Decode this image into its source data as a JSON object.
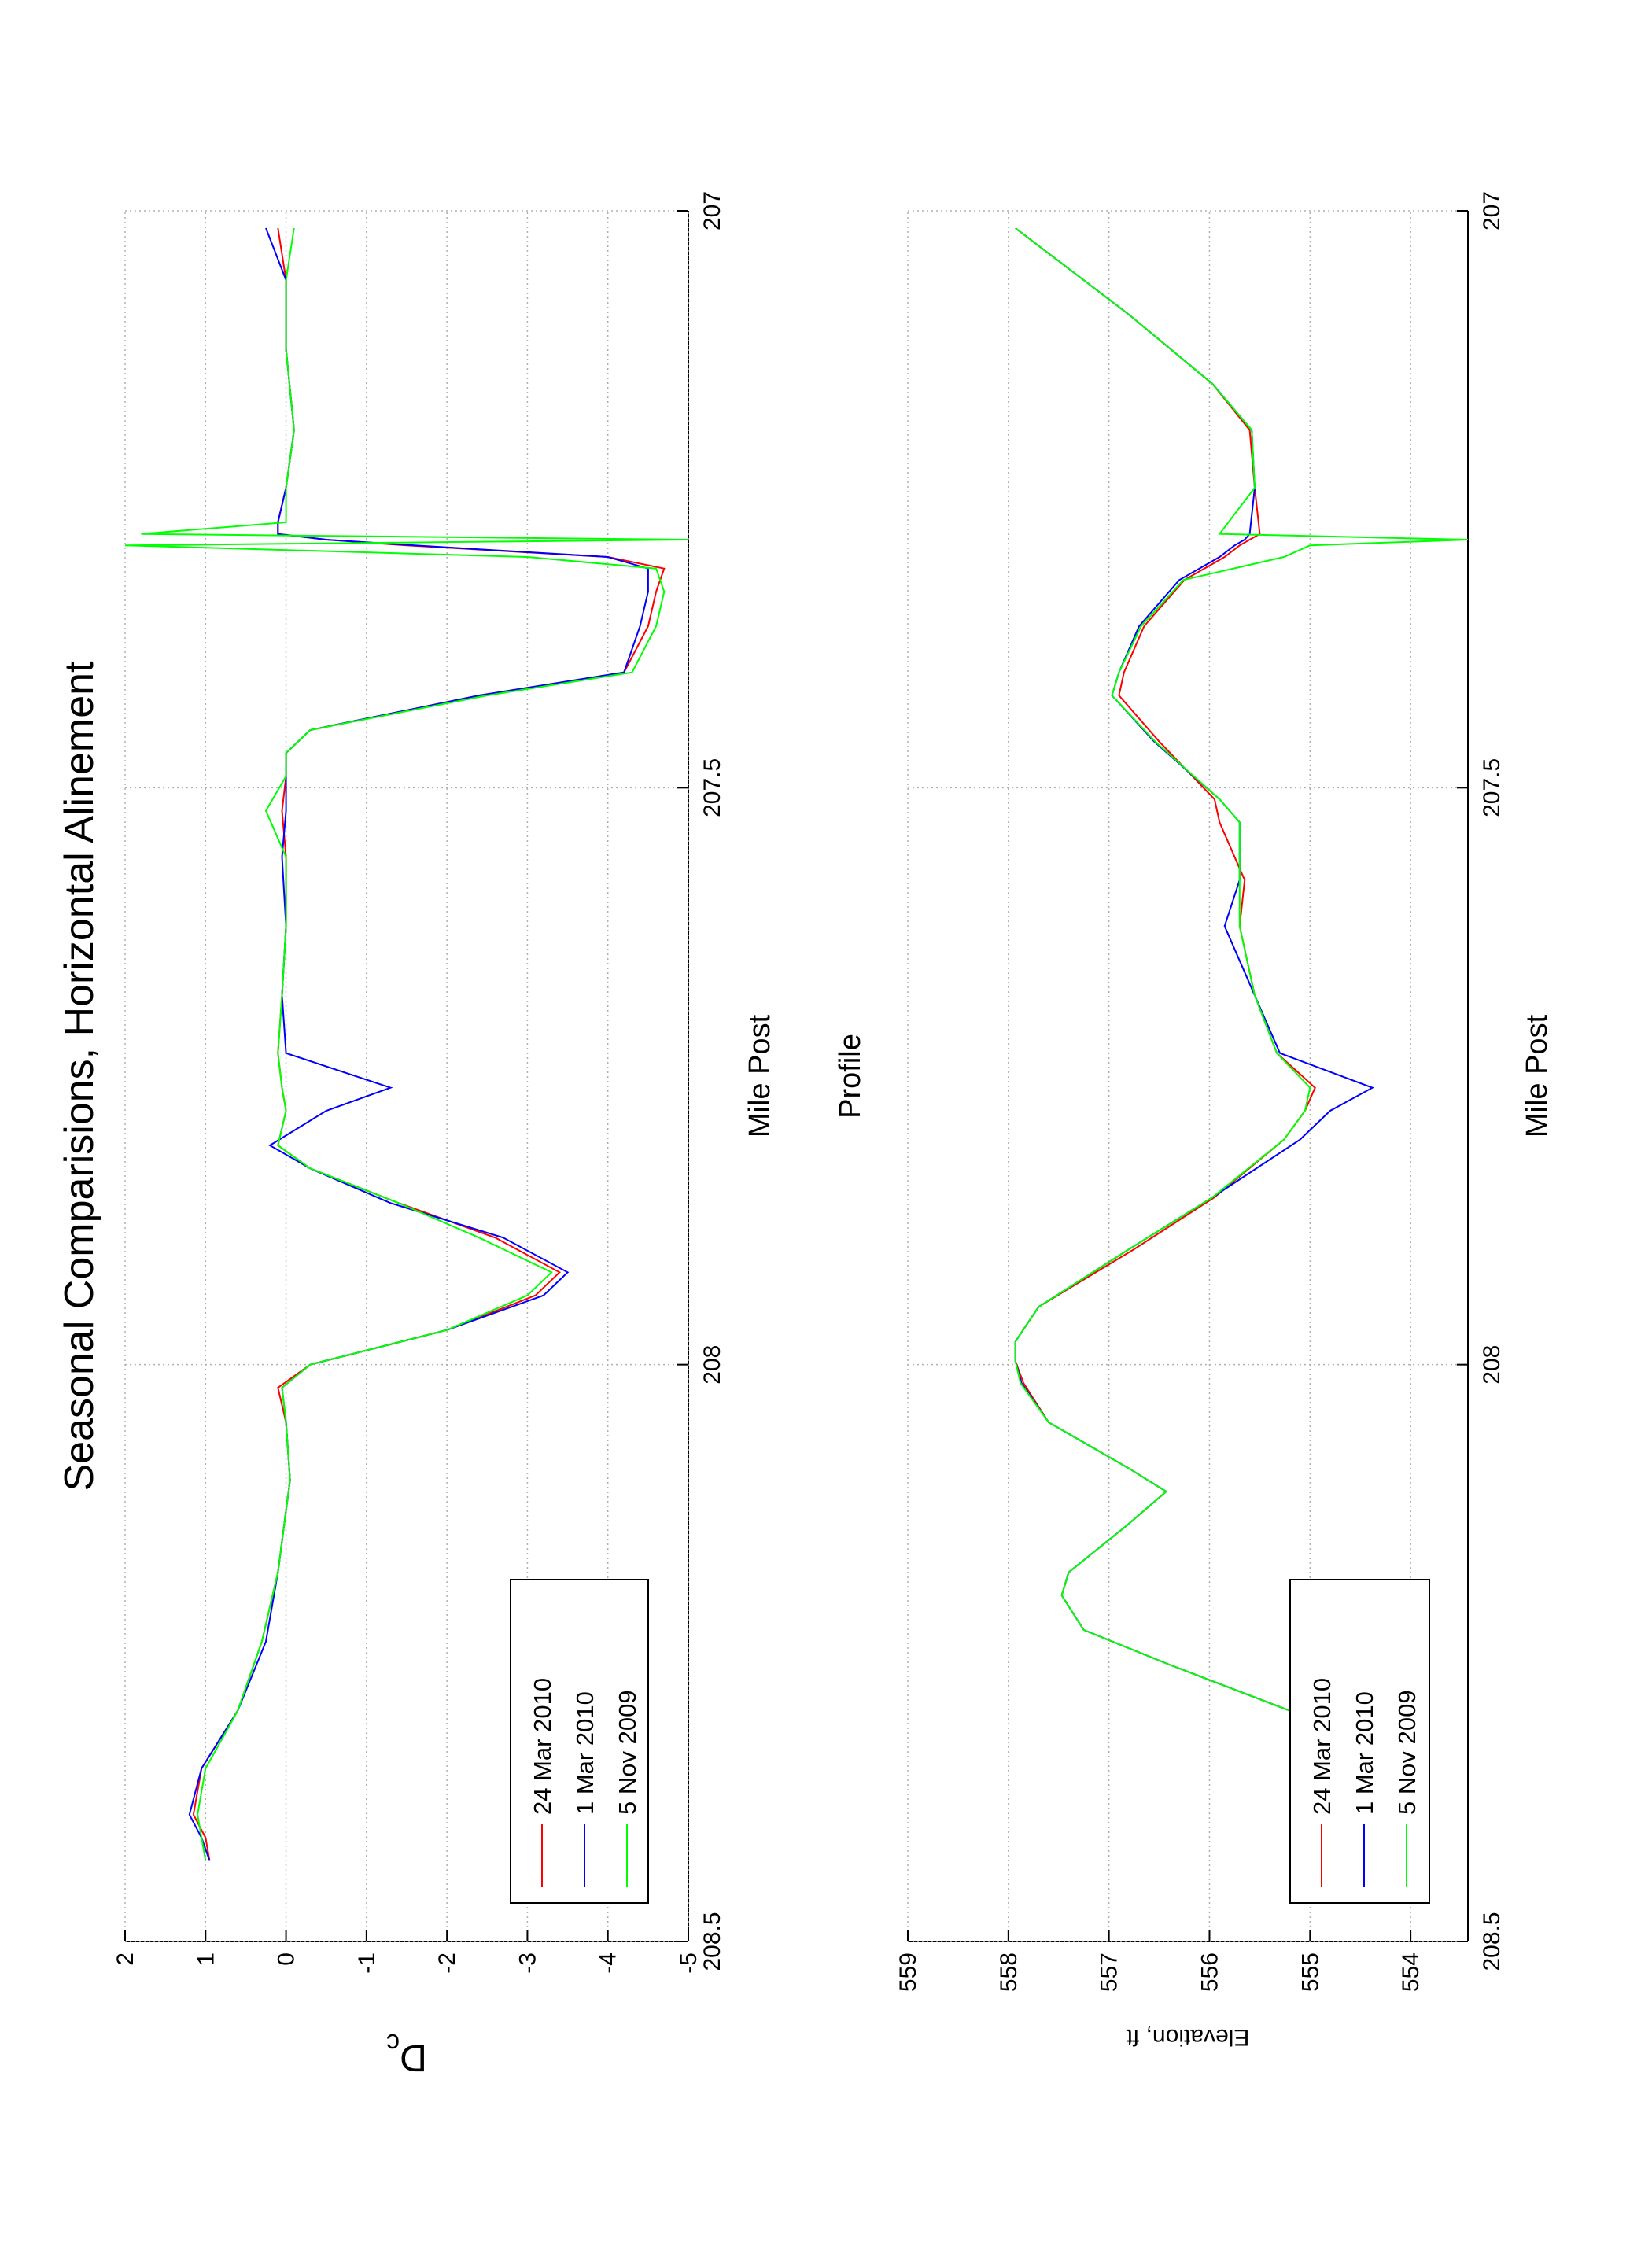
{
  "chart_data": [
    {
      "type": "line",
      "title": "Seasonal Comparisions,  Horizontal Alinement",
      "xlabel": "Mile Post",
      "ylabel": "Dc",
      "xlim": [
        208.5,
        207
      ],
      "xticks": [
        208.5,
        208,
        207.5,
        207
      ],
      "ylim": [
        -5,
        2
      ],
      "yticks": [
        -5,
        -4,
        -3,
        -2,
        -1,
        0,
        1,
        2
      ],
      "grid": true,
      "legend": "lower left",
      "x": [
        208.43,
        208.41,
        208.39,
        208.35,
        208.3,
        208.24,
        208.18,
        208.1,
        208.05,
        208.02,
        208.0,
        207.97,
        207.94,
        207.92,
        207.89,
        207.86,
        207.83,
        207.81,
        207.78,
        207.76,
        207.73,
        207.68,
        207.62,
        207.56,
        207.52,
        207.49,
        207.47,
        207.45,
        207.42,
        207.4,
        207.36,
        207.33,
        207.31,
        207.3,
        207.29,
        207.285,
        207.28,
        207.27,
        207.24,
        207.19,
        207.12,
        207.06,
        207.015
      ],
      "series": [
        {
          "name": "24 Mar 2010",
          "color": "#ff0000",
          "values": [
            0.95,
            1.0,
            1.15,
            1.05,
            0.6,
            0.3,
            0.1,
            -0.05,
            0.0,
            0.1,
            -0.3,
            -2.0,
            -3.1,
            -3.4,
            -2.6,
            -1.4,
            -0.3,
            0.1,
            0.0,
            0.05,
            0.1,
            0.05,
            0.0,
            0.0,
            0.05,
            0.0,
            0.0,
            -0.3,
            -2.4,
            -4.2,
            -4.5,
            -4.6,
            -4.7,
            -4.0,
            -1.5,
            -0.5,
            0.1,
            0.1,
            0.0,
            -0.1,
            0.0,
            0.0,
            0.1
          ]
        },
        {
          "name": "1 Mar 2010",
          "color": "#0000ff",
          "values": [
            0.95,
            1.05,
            1.2,
            1.05,
            0.6,
            0.25,
            0.1,
            -0.05,
            0.0,
            0.05,
            -0.3,
            -2.0,
            -3.2,
            -3.5,
            -2.7,
            -1.3,
            -0.3,
            0.2,
            -0.5,
            -1.3,
            0.0,
            0.05,
            0.0,
            0.05,
            0.0,
            0.0,
            0.0,
            -0.3,
            -2.4,
            -4.2,
            -4.4,
            -4.5,
            -4.5,
            -4.0,
            -1.6,
            -0.5,
            0.1,
            0.1,
            0.0,
            -0.1,
            0.0,
            0.0,
            0.25
          ]
        },
        {
          "name": "5 Nov 2009",
          "color": "#00ff00",
          "values": [
            1.0,
            1.05,
            1.1,
            1.0,
            0.6,
            0.3,
            0.1,
            -0.05,
            0.0,
            0.05,
            -0.3,
            -2.0,
            -3.0,
            -3.3,
            -2.4,
            -1.4,
            -0.3,
            0.1,
            0.0,
            0.05,
            0.1,
            0.05,
            0.0,
            0.0,
            0.25,
            0.0,
            0.0,
            -0.3,
            -2.5,
            -4.3,
            -4.6,
            -4.7,
            -4.6,
            -3.0,
            2.0,
            -5.0,
            1.8,
            0.0,
            0.0,
            -0.1,
            0.0,
            0.0,
            -0.1
          ]
        }
      ]
    },
    {
      "type": "line",
      "title": "Profile",
      "xlabel": "Mile Post",
      "ylabel": "Elevation, ft",
      "xlim": [
        208.5,
        207
      ],
      "xticks": [
        208.5,
        208,
        207.5,
        207
      ],
      "ylim": [
        553.43,
        559
      ],
      "yticks": [
        554,
        555,
        556,
        557,
        558,
        559
      ],
      "grid": true,
      "legend": "lower left",
      "x": [
        208.3,
        208.26,
        208.23,
        208.2,
        208.18,
        208.14,
        208.11,
        208.09,
        208.05,
        208.016,
        207.997,
        207.98,
        207.95,
        207.9,
        207.855,
        207.805,
        207.78,
        207.76,
        207.73,
        207.68,
        207.62,
        207.58,
        207.53,
        207.51,
        207.46,
        207.42,
        207.4,
        207.36,
        207.32,
        207.3,
        207.29,
        207.285,
        207.28,
        207.24,
        207.19,
        207.15,
        207.09,
        207.015
      ],
      "series": [
        {
          "name": "24 Mar 2010",
          "color": "#ff0000",
          "values": [
            555.2,
            556.4,
            557.25,
            557.47,
            557.4,
            556.83,
            556.43,
            556.8,
            557.6,
            557.85,
            557.93,
            557.93,
            557.7,
            556.75,
            555.95,
            555.26,
            555.05,
            554.95,
            555.33,
            555.55,
            555.7,
            555.65,
            555.9,
            555.95,
            556.5,
            556.9,
            556.85,
            556.65,
            556.25,
            555.85,
            555.7,
            555.6,
            555.5,
            555.55,
            555.6,
            555.97,
            556.8,
            557.93
          ]
        },
        {
          "name": "1 Mar 2010",
          "color": "#0000ff",
          "values": [
            555.2,
            556.4,
            557.25,
            557.47,
            557.4,
            556.83,
            556.43,
            556.8,
            557.6,
            557.87,
            557.93,
            557.93,
            557.7,
            556.8,
            555.97,
            555.1,
            554.8,
            554.38,
            555.3,
            555.55,
            555.85,
            555.7,
            555.7,
            555.9,
            556.55,
            556.97,
            556.9,
            556.7,
            556.3,
            555.9,
            555.75,
            555.65,
            555.6,
            555.55,
            555.58,
            555.97,
            556.8,
            557.93
          ]
        },
        {
          "name": "5 Nov 2009",
          "color": "#00ff00",
          "values": [
            555.2,
            556.4,
            557.25,
            557.47,
            557.4,
            556.83,
            556.43,
            556.8,
            557.6,
            557.88,
            557.93,
            557.93,
            557.7,
            556.8,
            555.97,
            555.26,
            555.05,
            555.0,
            555.33,
            555.55,
            555.7,
            555.7,
            555.7,
            555.9,
            556.54,
            556.97,
            556.9,
            556.68,
            556.26,
            555.26,
            555.0,
            553.43,
            555.9,
            555.55,
            555.58,
            555.97,
            556.8,
            557.93
          ]
        }
      ]
    }
  ]
}
